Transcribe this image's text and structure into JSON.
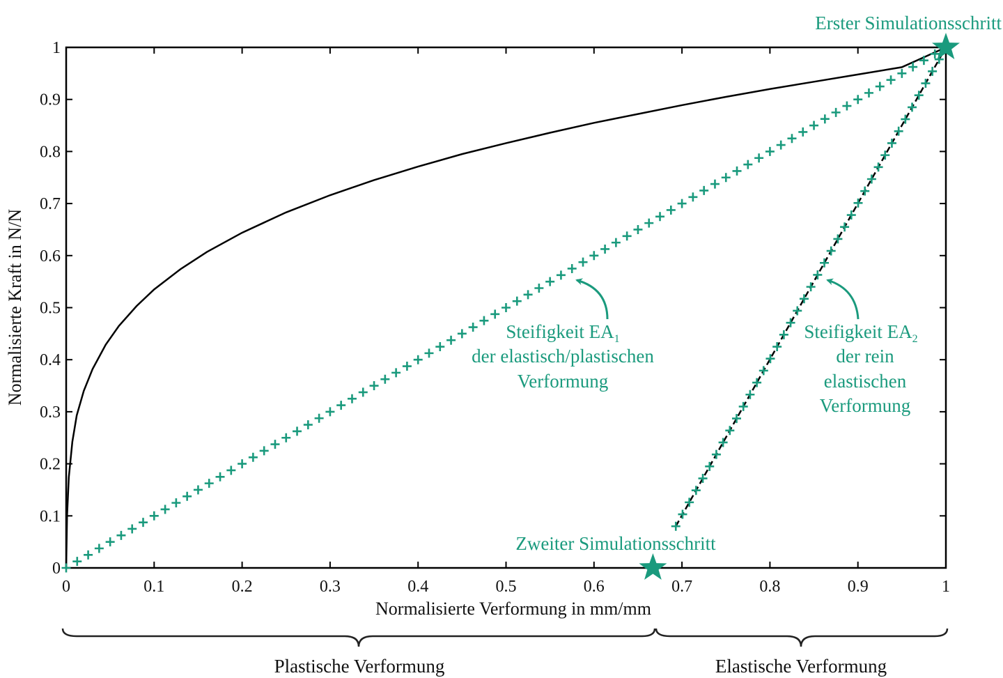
{
  "colors": {
    "accent": "#1a9a7d",
    "curve": "#000000",
    "axis": "#000000"
  },
  "chart_data": {
    "type": "line",
    "title": "",
    "xlabel": "Normalisierte Verformung in mm/mm",
    "ylabel": "Normalisierte Kraft in N/N",
    "xlim": [
      0,
      1
    ],
    "ylim": [
      0,
      1
    ],
    "xticks": [
      "0",
      "0.1",
      "0.2",
      "0.3",
      "0.4",
      "0.5",
      "0.6",
      "0.7",
      "0.8",
      "0.9",
      "1"
    ],
    "yticks": [
      "0",
      "0.1",
      "0.2",
      "0.3",
      "0.4",
      "0.5",
      "0.6",
      "0.7",
      "0.8",
      "0.9",
      "1"
    ],
    "grid": false,
    "legend": "none",
    "series": [
      {
        "style": "solid-black",
        "x": [
          0,
          0.001,
          0.003,
          0.007,
          0.012,
          0.02,
          0.03,
          0.045,
          0.06,
          0.08,
          0.1,
          0.13,
          0.16,
          0.2,
          0.25,
          0.3,
          0.35,
          0.4,
          0.45,
          0.5,
          0.55,
          0.6,
          0.65,
          0.7,
          0.75,
          0.8,
          0.85,
          0.9,
          0.95,
          1.0
        ],
        "y": [
          0,
          0.1,
          0.174,
          0.242,
          0.293,
          0.34,
          0.382,
          0.429,
          0.465,
          0.503,
          0.535,
          0.574,
          0.607,
          0.644,
          0.683,
          0.716,
          0.745,
          0.771,
          0.795,
          0.816,
          0.836,
          0.855,
          0.872,
          0.889,
          0.905,
          0.92,
          0.934,
          0.948,
          0.962,
          1.0
        ]
      },
      {
        "style": "dashed-black",
        "x": [
          0.693,
          1.0
        ],
        "y": [
          0.08,
          1.0
        ]
      },
      {
        "style": "plus-markers",
        "x": [
          0,
          1.0
        ],
        "y": [
          0,
          1.0
        ],
        "count": 80
      },
      {
        "style": "plus-markers",
        "x": [
          0.693,
          1.0
        ],
        "y": [
          0.08,
          1.0
        ],
        "count": 40
      }
    ],
    "markers": [
      {
        "label": "Erster Simulationsschritt",
        "x": 1.0,
        "y": 1.0
      },
      {
        "label": "Zweiter Simulationsschritt",
        "x": 0.667,
        "y": 0.0
      }
    ],
    "annotations": [
      {
        "lines": [
          "Steifigkeit EA",
          "der elastisch/plastischen",
          "Verformung"
        ],
        "subscript": "1",
        "arrow_to": [
          0.578,
          0.553
        ]
      },
      {
        "lines": [
          "Steifigkeit EA",
          "der rein",
          "elastischen",
          "Verformung"
        ],
        "subscript": "2",
        "arrow_to": [
          0.862,
          0.553
        ]
      }
    ],
    "regions": [
      {
        "label": "Plastische Verformung",
        "x_range": [
          0,
          0.667
        ]
      },
      {
        "label": "Elastische Verformung",
        "x_range": [
          0.667,
          1.0
        ]
      }
    ]
  }
}
